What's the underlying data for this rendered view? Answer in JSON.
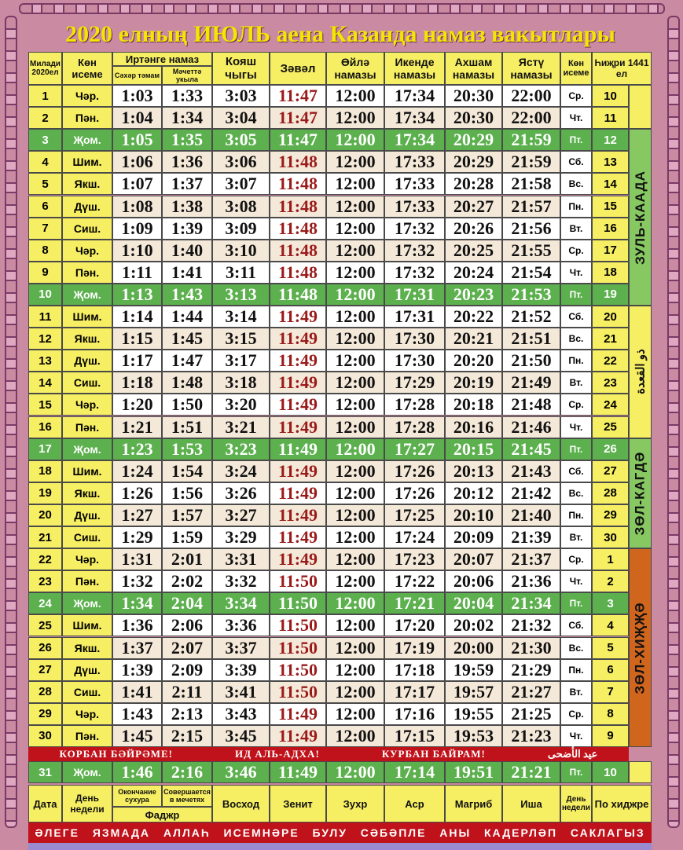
{
  "title": "2020 елның ИЮЛЬ аена Казанда намаз вакытлары",
  "header": {
    "miladi": "Милади 2020ел",
    "kon_iseme": "Көн исеме",
    "irtange": "Иртәнге намаз",
    "sahar": "Сәхәр тәмам",
    "machet": "Мәчеттә укыла",
    "koyash": "Кояш чыгы",
    "zaval": "Зәвәл",
    "oyla": "Өйлә намазы",
    "ikende": "Икенде намазы",
    "ahsham": "Ахшам намазы",
    "yastu": "Ястү намазы",
    "kon_iseme2": "Көн исеме",
    "hijri": "Һиҗри 1441 ел"
  },
  "rows": [
    {
      "d": "1",
      "day": "Чәр.",
      "s": "1:03",
      "m": "1:33",
      "k": "3:03",
      "z": "11:47",
      "o": "12:00",
      "i": "17:34",
      "a": "20:30",
      "y": "22:00",
      "r": "Ср.",
      "h": "10"
    },
    {
      "d": "2",
      "day": "Пән.",
      "s": "1:04",
      "m": "1:34",
      "k": "3:04",
      "z": "11:47",
      "o": "12:00",
      "i": "17:34",
      "a": "20:30",
      "y": "22:00",
      "r": "Чт.",
      "h": "11"
    },
    {
      "d": "3",
      "day": "Җом.",
      "s": "1:05",
      "m": "1:35",
      "k": "3:05",
      "z": "11:47",
      "o": "12:00",
      "i": "17:34",
      "a": "20:29",
      "y": "21:59",
      "r": "Пт.",
      "h": "12"
    },
    {
      "d": "4",
      "day": "Шим.",
      "s": "1:06",
      "m": "1:36",
      "k": "3:06",
      "z": "11:48",
      "o": "12:00",
      "i": "17:33",
      "a": "20:29",
      "y": "21:59",
      "r": "Сб.",
      "h": "13"
    },
    {
      "d": "5",
      "day": "Якш.",
      "s": "1:07",
      "m": "1:37",
      "k": "3:07",
      "z": "11:48",
      "o": "12:00",
      "i": "17:33",
      "a": "20:28",
      "y": "21:58",
      "r": "Вс.",
      "h": "14"
    },
    {
      "d": "6",
      "day": "Дүш.",
      "s": "1:08",
      "m": "1:38",
      "k": "3:08",
      "z": "11:48",
      "o": "12:00",
      "i": "17:33",
      "a": "20:27",
      "y": "21:57",
      "r": "Пн.",
      "h": "15"
    },
    {
      "d": "7",
      "day": "Сиш.",
      "s": "1:09",
      "m": "1:39",
      "k": "3:09",
      "z": "11:48",
      "o": "12:00",
      "i": "17:32",
      "a": "20:26",
      "y": "21:56",
      "r": "Вт.",
      "h": "16"
    },
    {
      "d": "8",
      "day": "Чәр.",
      "s": "1:10",
      "m": "1:40",
      "k": "3:10",
      "z": "11:48",
      "o": "12:00",
      "i": "17:32",
      "a": "20:25",
      "y": "21:55",
      "r": "Ср.",
      "h": "17"
    },
    {
      "d": "9",
      "day": "Пән.",
      "s": "1:11",
      "m": "1:41",
      "k": "3:11",
      "z": "11:48",
      "o": "12:00",
      "i": "17:32",
      "a": "20:24",
      "y": "21:54",
      "r": "Чт.",
      "h": "18"
    },
    {
      "d": "10",
      "day": "Җом.",
      "s": "1:13",
      "m": "1:43",
      "k": "3:13",
      "z": "11:48",
      "o": "12:00",
      "i": "17:31",
      "a": "20:23",
      "y": "21:53",
      "r": "Пт.",
      "h": "19"
    },
    {
      "d": "11",
      "day": "Шим.",
      "s": "1:14",
      "m": "1:44",
      "k": "3:14",
      "z": "11:49",
      "o": "12:00",
      "i": "17:31",
      "a": "20:22",
      "y": "21:52",
      "r": "Сб.",
      "h": "20"
    },
    {
      "d": "12",
      "day": "Якш.",
      "s": "1:15",
      "m": "1:45",
      "k": "3:15",
      "z": "11:49",
      "o": "12:00",
      "i": "17:30",
      "a": "20:21",
      "y": "21:51",
      "r": "Вс.",
      "h": "21"
    },
    {
      "d": "13",
      "day": "Дүш.",
      "s": "1:17",
      "m": "1:47",
      "k": "3:17",
      "z": "11:49",
      "o": "12:00",
      "i": "17:30",
      "a": "20:20",
      "y": "21:50",
      "r": "Пн.",
      "h": "22"
    },
    {
      "d": "14",
      "day": "Сиш.",
      "s": "1:18",
      "m": "1:48",
      "k": "3:18",
      "z": "11:49",
      "o": "12:00",
      "i": "17:29",
      "a": "20:19",
      "y": "21:49",
      "r": "Вт.",
      "h": "23"
    },
    {
      "d": "15",
      "day": "Чәр.",
      "s": "1:20",
      "m": "1:50",
      "k": "3:20",
      "z": "11:49",
      "o": "12:00",
      "i": "17:28",
      "a": "20:18",
      "y": "21:48",
      "r": "Ср.",
      "h": "24"
    },
    {
      "d": "16",
      "day": "Пән.",
      "s": "1:21",
      "m": "1:51",
      "k": "3:21",
      "z": "11:49",
      "o": "12:00",
      "i": "17:28",
      "a": "20:16",
      "y": "21:46",
      "r": "Чт.",
      "h": "25"
    },
    {
      "d": "17",
      "day": "Җом.",
      "s": "1:23",
      "m": "1:53",
      "k": "3:23",
      "z": "11:49",
      "o": "12:00",
      "i": "17:27",
      "a": "20:15",
      "y": "21:45",
      "r": "Пт.",
      "h": "26"
    },
    {
      "d": "18",
      "day": "Шим.",
      "s": "1:24",
      "m": "1:54",
      "k": "3:24",
      "z": "11:49",
      "o": "12:00",
      "i": "17:26",
      "a": "20:13",
      "y": "21:43",
      "r": "Сб.",
      "h": "27"
    },
    {
      "d": "19",
      "day": "Якш.",
      "s": "1:26",
      "m": "1:56",
      "k": "3:26",
      "z": "11:49",
      "o": "12:00",
      "i": "17:26",
      "a": "20:12",
      "y": "21:42",
      "r": "Вс.",
      "h": "28"
    },
    {
      "d": "20",
      "day": "Дүш.",
      "s": "1:27",
      "m": "1:57",
      "k": "3:27",
      "z": "11:49",
      "o": "12:00",
      "i": "17:25",
      "a": "20:10",
      "y": "21:40",
      "r": "Пн.",
      "h": "29"
    },
    {
      "d": "21",
      "day": "Сиш.",
      "s": "1:29",
      "m": "1:59",
      "k": "3:29",
      "z": "11:49",
      "o": "12:00",
      "i": "17:24",
      "a": "20:09",
      "y": "21:39",
      "r": "Вт.",
      "h": "30"
    },
    {
      "d": "22",
      "day": "Чәр.",
      "s": "1:31",
      "m": "2:01",
      "k": "3:31",
      "z": "11:49",
      "o": "12:00",
      "i": "17:23",
      "a": "20:07",
      "y": "21:37",
      "r": "Ср.",
      "h": "1"
    },
    {
      "d": "23",
      "day": "Пән.",
      "s": "1:32",
      "m": "2:02",
      "k": "3:32",
      "z": "11:50",
      "o": "12:00",
      "i": "17:22",
      "a": "20:06",
      "y": "21:36",
      "r": "Чт.",
      "h": "2"
    },
    {
      "d": "24",
      "day": "Җом.",
      "s": "1:34",
      "m": "2:04",
      "k": "3:34",
      "z": "11:50",
      "o": "12:00",
      "i": "17:21",
      "a": "20:04",
      "y": "21:34",
      "r": "Пт.",
      "h": "3"
    },
    {
      "d": "25",
      "day": "Шим.",
      "s": "1:36",
      "m": "2:06",
      "k": "3:36",
      "z": "11:50",
      "o": "12:00",
      "i": "17:20",
      "a": "20:02",
      "y": "21:32",
      "r": "Сб.",
      "h": "4"
    },
    {
      "d": "26",
      "day": "Якш.",
      "s": "1:37",
      "m": "2:07",
      "k": "3:37",
      "z": "11:50",
      "o": "12:00",
      "i": "17:19",
      "a": "20:00",
      "y": "21:30",
      "r": "Вс.",
      "h": "5"
    },
    {
      "d": "27",
      "day": "Дүш.",
      "s": "1:39",
      "m": "2:09",
      "k": "3:39",
      "z": "11:50",
      "o": "12:00",
      "i": "17:18",
      "a": "19:59",
      "y": "21:29",
      "r": "Пн.",
      "h": "6"
    },
    {
      "d": "28",
      "day": "Сиш.",
      "s": "1:41",
      "m": "2:11",
      "k": "3:41",
      "z": "11:50",
      "o": "12:00",
      "i": "17:17",
      "a": "19:57",
      "y": "21:27",
      "r": "Вт.",
      "h": "7"
    },
    {
      "d": "29",
      "day": "Чәр.",
      "s": "1:43",
      "m": "2:13",
      "k": "3:43",
      "z": "11:49",
      "o": "12:00",
      "i": "17:16",
      "a": "19:55",
      "y": "21:25",
      "r": "Ср.",
      "h": "8"
    },
    {
      "d": "30",
      "day": "Пән.",
      "s": "1:45",
      "m": "2:15",
      "k": "3:45",
      "z": "11:49",
      "o": "12:00",
      "i": "17:15",
      "a": "19:53",
      "y": "21:23",
      "r": "Чт.",
      "h": "9"
    }
  ],
  "holiday": [
    "КОРБАН БӘЙРӘМЕ!",
    "ИД АЛЬ-АДХА!",
    "КУРБАН БАЙРАМ!",
    "عيد الأضحى"
  ],
  "row31": {
    "d": "31",
    "day": "Җом.",
    "s": "1:46",
    "m": "2:16",
    "k": "3:46",
    "z": "11:49",
    "o": "12:00",
    "i": "17:14",
    "a": "19:51",
    "y": "21:21",
    "r": "Пт.",
    "h": "10"
  },
  "months": {
    "zul_kaada": "ЗУЛЬ-КААДА",
    "arabic_kaada": "ذو القعدة",
    "zel_kagde": "ЗӨЛ-КАГДӘ",
    "zel_hijja": "ЗӨЛ-ХИҖҖӘ"
  },
  "footer_header": {
    "data": "Дата",
    "den_nedeli": "День недели",
    "okonchanie": "Окончание сухура",
    "soversh": "Совершается в мечетях",
    "fadzhr": "Фаджр",
    "voshod": "Восход",
    "zenit": "Зенит",
    "zuhr": "Зухр",
    "asr": "Аср",
    "magrib": "Магриб",
    "isha": "Иша",
    "den_nedeli2": "День недели",
    "po_hijre": "По хиджре"
  },
  "footer_line": [
    "ӘЛЕГЕ",
    "ЯЗМАДА",
    "АЛЛАҺ",
    "ИСЕМНӘРЕ",
    "БУЛУ",
    "СӘБӘПЛЕ",
    "АНЫ",
    "КАДЕРЛӘП",
    "САКЛАГЫЗ"
  ],
  "colors": {
    "green_row": "#5cb04e",
    "yellow": "#f6ee63",
    "red": "#c0121a",
    "zaval_text": "#9a1a1a",
    "frame": "#c98aa2",
    "hijja_band": "#d0661e"
  }
}
